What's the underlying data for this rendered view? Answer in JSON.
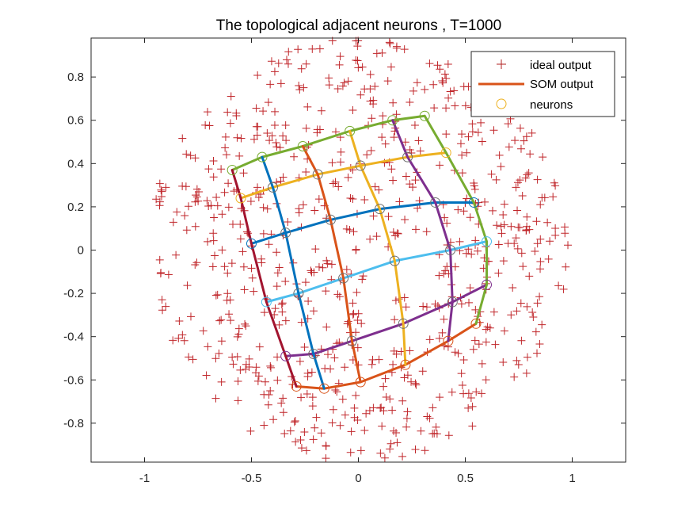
{
  "chart_data": {
    "type": "scatter",
    "title": "The topological adjacent neurons , T=1000",
    "xlabel": "",
    "ylabel": "",
    "xlim": [
      -1.25,
      1.25
    ],
    "ylim": [
      -0.98,
      0.98
    ],
    "xticks": [
      -1,
      -0.5,
      0,
      0.5,
      1
    ],
    "yticks": [
      -0.8,
      -0.6,
      -0.4,
      -0.2,
      0,
      0.2,
      0.4,
      0.6,
      0.8
    ],
    "xtick_labels": [
      "-1",
      "-0.5",
      "0",
      "0.5",
      "1"
    ],
    "ytick_labels": [
      "-0.8",
      "-0.6",
      "-0.4",
      "-0.2",
      "0",
      "0.2",
      "0.4",
      "0.6",
      "0.8"
    ],
    "grid": false,
    "legend": {
      "position": "top-right",
      "entries": [
        {
          "label": "ideal output",
          "marker": "plus",
          "color": "#b22222"
        },
        {
          "label": "SOM output",
          "marker": "line",
          "color": "#d95319"
        },
        {
          "label": "neurons",
          "marker": "circle",
          "color": "#edb120"
        }
      ]
    },
    "ideal_output": {
      "marker": "plus",
      "color": "#c0262a",
      "distribution": "uniform-disc",
      "center": [
        0,
        0
      ],
      "radius": 0.98,
      "count": 720
    },
    "neurons": {
      "grid_size": [
        6,
        6
      ],
      "positions": [
        [
          [
            -0.29,
            -0.63
          ],
          [
            -0.16,
            -0.64
          ],
          [
            0.01,
            -0.61
          ],
          [
            0.22,
            -0.53
          ],
          [
            0.42,
            -0.42
          ],
          [
            0.55,
            -0.34
          ]
        ],
        [
          [
            -0.34,
            -0.49
          ],
          [
            -0.21,
            -0.48
          ],
          [
            -0.03,
            -0.42
          ],
          [
            0.21,
            -0.34
          ],
          [
            0.44,
            -0.24
          ],
          [
            0.6,
            -0.16
          ]
        ],
        [
          [
            -0.43,
            -0.24
          ],
          [
            -0.28,
            -0.2
          ],
          [
            -0.07,
            -0.13
          ],
          [
            0.17,
            -0.05
          ],
          [
            0.43,
            0.0
          ],
          [
            0.6,
            0.04
          ]
        ],
        [
          [
            -0.5,
            0.03
          ],
          [
            -0.34,
            0.08
          ],
          [
            -0.13,
            0.14
          ],
          [
            0.1,
            0.19
          ],
          [
            0.36,
            0.22
          ],
          [
            0.54,
            0.22
          ]
        ],
        [
          [
            -0.55,
            0.24
          ],
          [
            -0.4,
            0.29
          ],
          [
            -0.19,
            0.35
          ],
          [
            0.01,
            0.39
          ],
          [
            0.23,
            0.43
          ],
          [
            0.41,
            0.45
          ]
        ],
        [
          [
            -0.59,
            0.37
          ],
          [
            -0.45,
            0.43
          ],
          [
            -0.26,
            0.48
          ],
          [
            -0.04,
            0.55
          ],
          [
            0.16,
            0.6
          ],
          [
            0.31,
            0.62
          ]
        ]
      ],
      "row_colors": [
        "#d95319",
        "#7e2f8e",
        "#4dbeee",
        "#0072bd",
        "#edb120",
        "#77ac30"
      ],
      "col_colors": [
        "#a2142f",
        "#0072bd",
        "#d95319",
        "#edb120",
        "#7e2f8e",
        "#77ac30"
      ]
    }
  }
}
